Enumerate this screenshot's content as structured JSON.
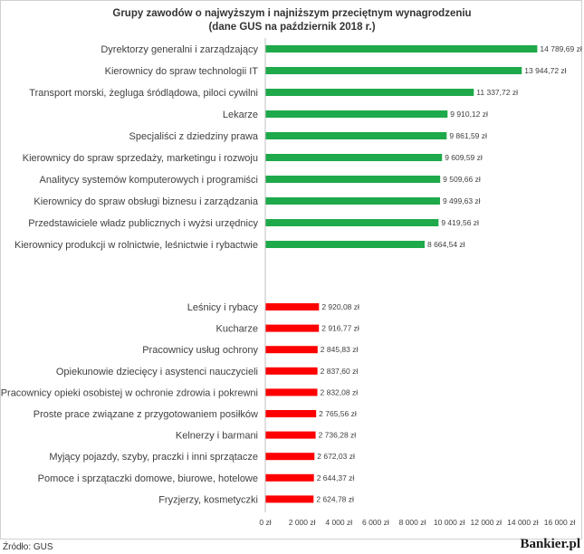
{
  "title_line1": "Grupy zawodów o najwyższym i najniższym przeciętnym wynagrodzeniu",
  "title_line2": "(dane GUS na październik 2018 r.)",
  "source": "Źródło: GUS",
  "brand": "Bankier.pl",
  "colors": {
    "top": "#1ea94a",
    "bottom": "#ff0000",
    "axis": "#bfbfbf"
  },
  "chart_data": {
    "type": "bar",
    "orientation": "horizontal",
    "xlim": [
      0,
      16000
    ],
    "ticks": [
      "0 zł",
      "2 000 zł",
      "4 000 zł",
      "6 000 zł",
      "8 000 zł",
      "10 000 zł",
      "12 000 zł",
      "14 000 zł",
      "16 000 zł"
    ],
    "tick_values": [
      0,
      2000,
      4000,
      6000,
      8000,
      10000,
      12000,
      14000,
      16000
    ],
    "series": [
      {
        "group": "top",
        "categories": [
          "Dyrektorzy generalni i zarządzający",
          "Kierownicy do spraw technologii IT",
          "Transport morski, żegluga śródlądowa, piloci cywilni",
          "Lekarze",
          "Specjaliści z dziedziny prawa",
          "Kierownicy do spraw sprzedaży, marketingu i rozwoju",
          "Analitycy systemów komputerowych i programiści",
          "Kierownicy do spraw obsługi biznesu i zarządzania",
          "Przedstawiciele władz publicznych i wyżsi urzędnicy",
          "Kierownicy produkcji w rolnictwie, leśnictwie i rybactwie"
        ],
        "values": [
          14789.69,
          13944.72,
          11337.72,
          9910.12,
          9861.59,
          9609.59,
          9509.66,
          9499.63,
          9419.56,
          8664.54
        ],
        "labels": [
          "14 789,69 zł",
          "13 944,72 zł",
          "11 337,72 zł",
          "9 910,12 zł",
          "9 861,59 zł",
          "9 609,59 zł",
          "9 509,66 zł",
          "9 499,63 zł",
          "9 419,56 zł",
          "8 664,54 zł"
        ]
      },
      {
        "group": "bottom",
        "categories": [
          "Leśnicy i rybacy",
          "Kucharze",
          "Pracownicy usług ochrony",
          "Opiekunowie dziecięcy i asystenci nauczycieli",
          "Pracownicy opieki osobistej w ochronie zdrowia i pokrewni",
          "Proste prace związane z przygotowaniem posiłków",
          "Kelnerzy i barmani",
          "Myjący pojazdy, szyby, praczki i inni sprzątacze",
          "Pomoce i sprzątaczki domowe, biurowe, hotelowe",
          "Fryzjerzy, kosmetyczki"
        ],
        "values": [
          2920.08,
          2916.77,
          2845.83,
          2837.6,
          2832.08,
          2765.56,
          2736.28,
          2672.03,
          2644.37,
          2624.78
        ],
        "labels": [
          "2 920,08 zł",
          "2 916,77 zł",
          "2 845,83 zł",
          "2 837,60 zł",
          "2 832,08 zł",
          "2 765,56 zł",
          "2 736,28 zł",
          "2 672,03 zł",
          "2 644,37 zł",
          "2 624,78 zł"
        ]
      }
    ]
  }
}
